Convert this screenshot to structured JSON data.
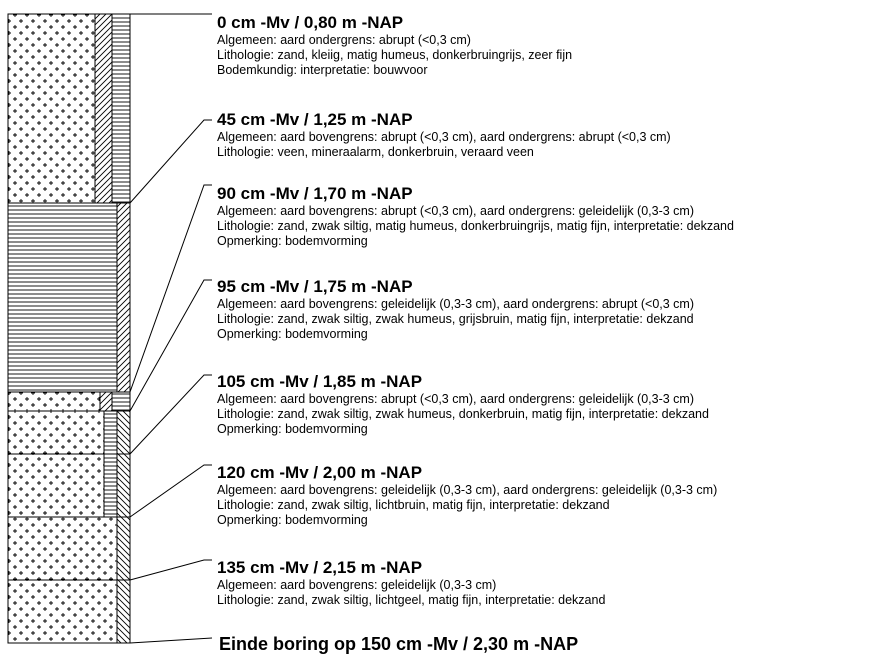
{
  "layers": [
    {
      "title": "0 cm -Mv / 0,80 m -NAP",
      "lines": [
        "Algemeen: aard ondergrens: abrupt (<0,3 cm)",
        "Lithologie: zand, kleiig, matig humeus, donkerbruingrijs, zeer fijn",
        "Bodemkundig: interpretatie: bouwvoor"
      ]
    },
    {
      "title": "45 cm -Mv / 1,25 m -NAP",
      "lines": [
        "Algemeen: aard bovengrens: abrupt (<0,3 cm), aard ondergrens: abrupt (<0,3 cm)",
        "Lithologie: veen, mineraalarm, donkerbruin, veraard veen"
      ]
    },
    {
      "title": "90 cm -Mv / 1,70 m -NAP",
      "lines": [
        "Algemeen: aard bovengrens: abrupt (<0,3 cm), aard ondergrens: geleidelijk (0,3-3 cm)",
        "Lithologie: zand, zwak siltig, matig humeus, donkerbruingrijs, matig fijn, interpretatie: dekzand",
        "Opmerking: bodemvorming"
      ]
    },
    {
      "title": "95 cm -Mv / 1,75 m -NAP",
      "lines": [
        "Algemeen: aard bovengrens: geleidelijk (0,3-3 cm), aard ondergrens: abrupt (<0,3 cm)",
        "Lithologie: zand, zwak siltig, zwak humeus, grijsbruin, matig fijn, interpretatie: dekzand",
        "Opmerking: bodemvorming"
      ]
    },
    {
      "title": "105 cm -Mv / 1,85 m -NAP",
      "lines": [
        "Algemeen: aard bovengrens: abrupt (<0,3 cm), aard ondergrens: geleidelijk (0,3-3 cm)",
        "Lithologie: zand, zwak siltig, zwak humeus, donkerbruin, matig fijn, interpretatie: dekzand",
        "Opmerking: bodemvorming"
      ]
    },
    {
      "title": "120 cm -Mv / 2,00 m -NAP",
      "lines": [
        "Algemeen: aard bovengrens: geleidelijk (0,3-3 cm), aard ondergrens: geleidelijk (0,3-3 cm)",
        "Lithologie: zand, zwak siltig, lichtbruin, matig fijn, interpretatie: dekzand",
        "Opmerking: bodemvorming"
      ]
    },
    {
      "title": "135 cm -Mv / 2,15 m -NAP",
      "lines": [
        "Algemeen: aard bovengrens: geleidelijk (0,3-3 cm)",
        "Lithologie: zand, zwak siltig, lichtgeel, matig fijn, interpretatie: dekzand"
      ]
    }
  ],
  "end_title": "Einde boring op 150 cm -Mv / 2,30 m -NAP"
}
